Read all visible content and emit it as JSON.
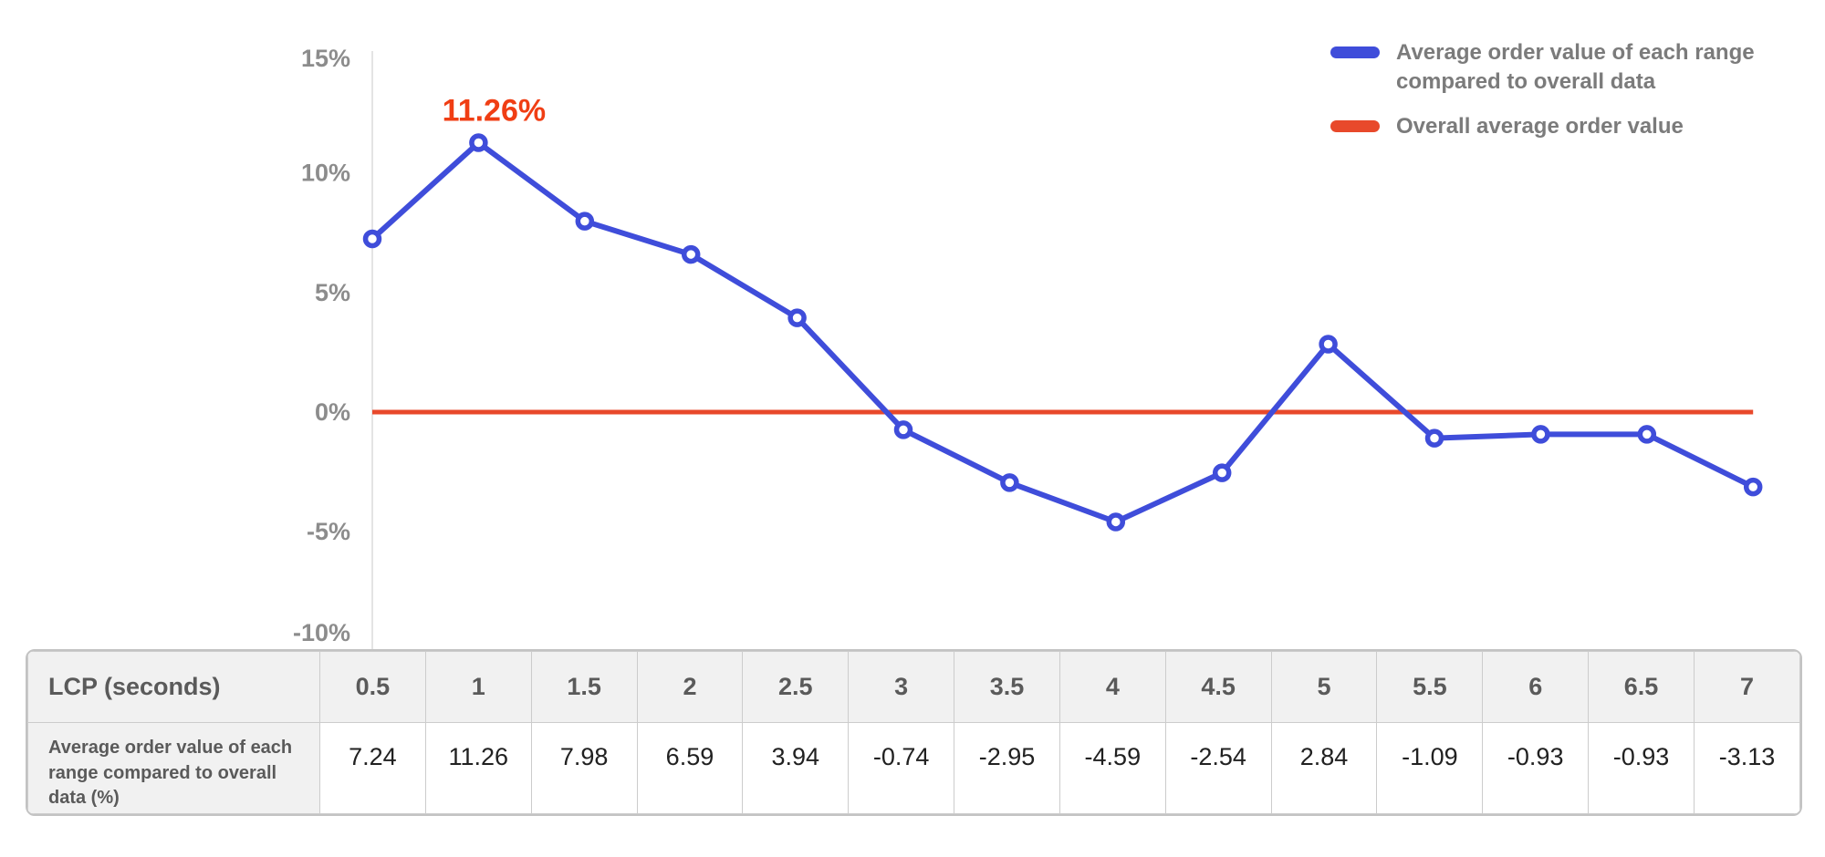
{
  "chart_data": {
    "type": "line",
    "title": "",
    "xlabel": "LCP (seconds)",
    "ylabel": "",
    "x": [
      0.5,
      1,
      1.5,
      2,
      2.5,
      3,
      3.5,
      4,
      4.5,
      5,
      5.5,
      6,
      6.5,
      7
    ],
    "series": [
      {
        "name": "Average order value of each range compared to overall data",
        "values": [
          7.24,
          11.26,
          7.98,
          6.59,
          3.94,
          -0.74,
          -2.95,
          -4.59,
          -2.54,
          2.84,
          -1.09,
          -0.93,
          -0.93,
          -3.13
        ],
        "color": "#3f4dda",
        "marker": "open-circle"
      }
    ],
    "reference_line": {
      "name": "Overall average order value",
      "value": 0,
      "color": "#e8492b"
    },
    "annotation": {
      "text": "11.26%",
      "point_index": 1,
      "value": 11.26,
      "color": "#f03e14"
    },
    "y_axis": {
      "ticks": [
        15,
        10,
        5,
        0,
        -5,
        -10
      ],
      "tick_suffix": "%",
      "ylim": [
        -10,
        15
      ],
      "gridlines": false,
      "tick_color": "#8c8c8c",
      "axis_line_color": "#e4e4e4"
    },
    "legend": {
      "position": "top-right",
      "items": [
        {
          "label": "Average order value of each range compared to overall data",
          "color": "#3f4dda",
          "type": "line"
        },
        {
          "label": "Overall average order value",
          "color": "#e8492b",
          "type": "line"
        }
      ]
    }
  },
  "table": {
    "col1_header": "LCP (seconds)",
    "row_label": "Average order value of each range compared to overall data (%)",
    "columns": [
      "0.5",
      "1",
      "1.5",
      "2",
      "2.5",
      "3",
      "3.5",
      "4",
      "4.5",
      "5",
      "5.5",
      "6",
      "6.5",
      "7"
    ],
    "values": [
      "7.24",
      "11.26",
      "7.98",
      "6.59",
      "3.94",
      "-0.74",
      "-2.95",
      "-4.59",
      "-2.54",
      "2.84",
      "-1.09",
      "-0.93",
      "-0.93",
      "-3.13"
    ],
    "header_bg": "#f1f1f1",
    "border_color": "#c8c8c8"
  }
}
